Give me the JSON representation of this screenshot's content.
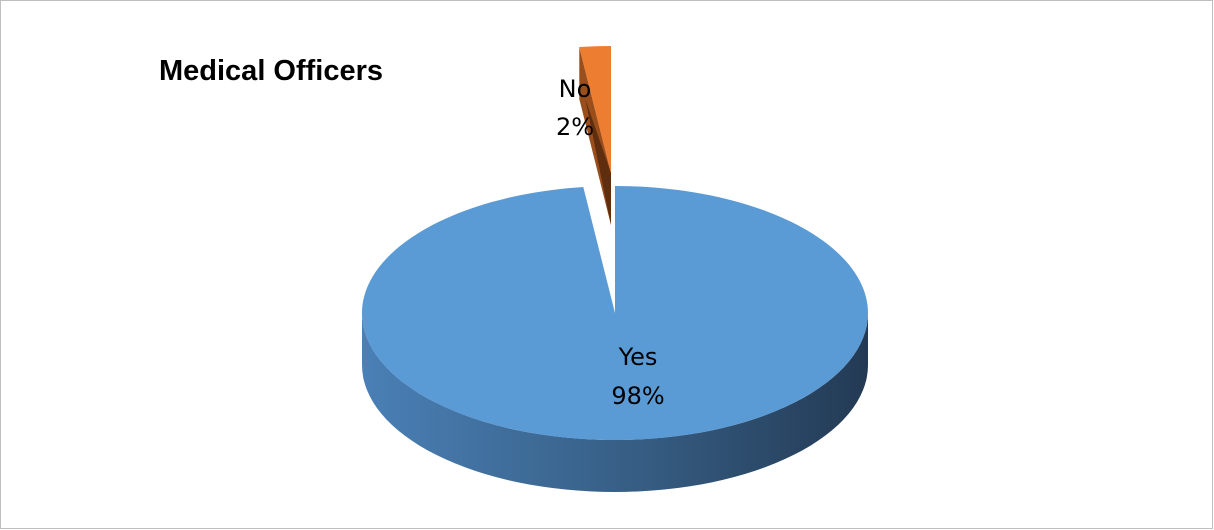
{
  "chart_data": {
    "type": "pie",
    "title": "Medical Officers",
    "slices": [
      {
        "label": "Yes",
        "percent_label": "98%",
        "value": 98,
        "color": "#5b9bd5"
      },
      {
        "label": "No",
        "percent_label": "2%",
        "value": 2,
        "color": "#ed7d31"
      }
    ],
    "style": "3d-exploded",
    "legend": "none",
    "data_labels": "category-and-percent"
  }
}
